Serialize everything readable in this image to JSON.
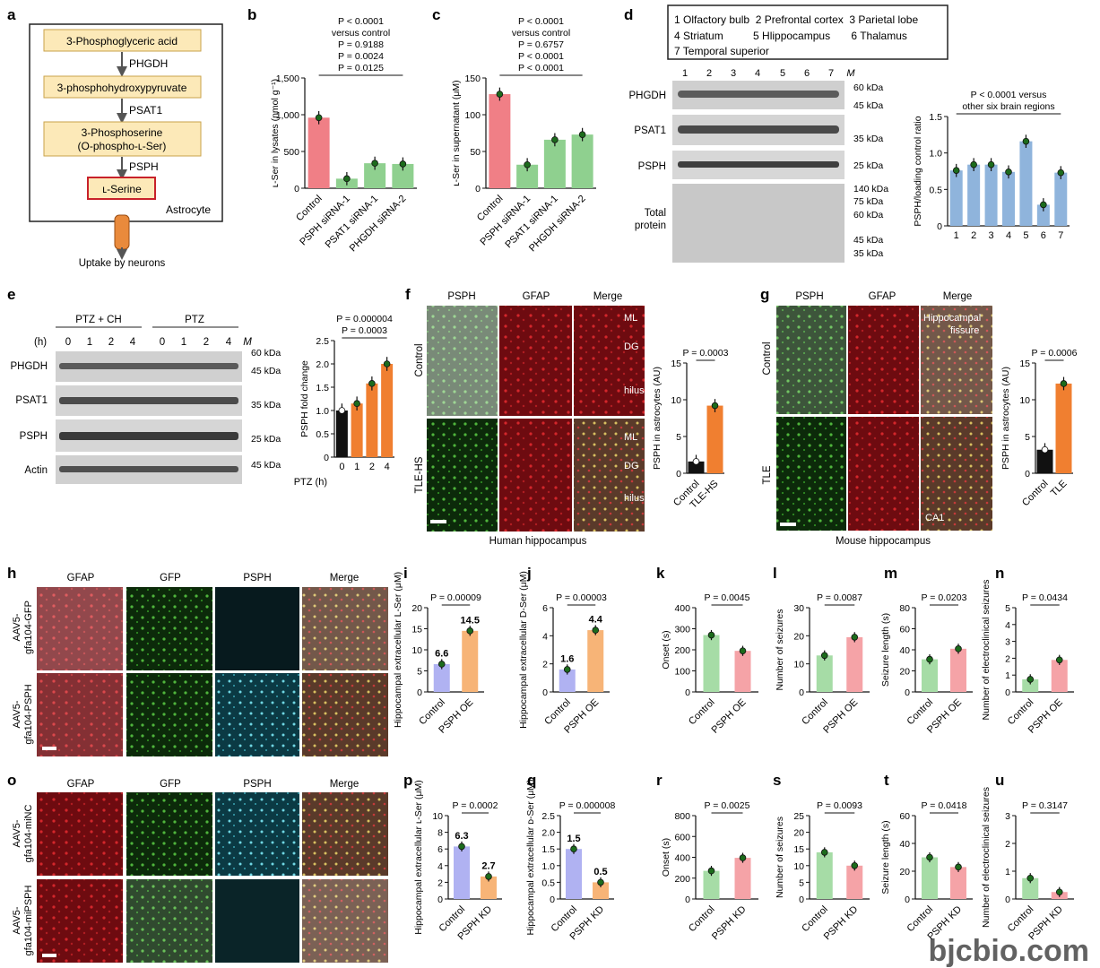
{
  "watermark": "bjcbio.com",
  "panel_a": {
    "letter": "a",
    "steps": [
      "3-Phosphoglyceric acid",
      "3-phosphohydroxypyruvate",
      "3-Phosphoserine",
      "(O-phospho-ʟ-Ser)",
      "ʟ-Serine"
    ],
    "enzymes": [
      "PHGDH",
      "PSAT1",
      "PSPH"
    ],
    "cell_label": "Astrocyte",
    "uptake": "Uptake by neurons"
  },
  "panel_d_legend": {
    "rows": [
      "1 Olfactory bulb  2 Prefrontal cortex  3 Parietal lobe",
      "4 Striatum          5 Hlippocampus       6 Thalamus",
      "7 Temporal superior"
    ]
  },
  "blots": {
    "d_lanes": [
      "1",
      "2",
      "3",
      "4",
      "5",
      "6",
      "7",
      "M"
    ],
    "d_rows": [
      "PHGDH",
      "PSAT1",
      "PSPH",
      "Total",
      "protein"
    ],
    "d_markers": [
      "60 kDa",
      "45 kDa",
      "35 kDa",
      "25 kDa",
      "140 kDa",
      "75 kDa",
      "60 kDa",
      "45 kDa",
      "35 kDa"
    ],
    "e_groups": [
      "PTZ + CH",
      "PTZ"
    ],
    "e_h": "(h)",
    "e_lanes": [
      "0",
      "1",
      "2",
      "4",
      "0",
      "1",
      "2",
      "4",
      "M"
    ],
    "e_rows": [
      "PHGDH",
      "PSAT1",
      "PSPH",
      "Actin"
    ],
    "e_markers": [
      "60 kDa",
      "45 kDa",
      "35 kDa",
      "25 kDa",
      "45 kDa"
    ]
  },
  "images": {
    "f": {
      "cols": [
        "PSPH",
        "GFAP",
        "Merge"
      ],
      "rows": [
        "Control",
        "TLE-HS"
      ],
      "marks": [
        "ML",
        "DG",
        "hilus",
        "ML",
        "DG",
        "hilus"
      ],
      "caption": "Human hippocampus"
    },
    "g": {
      "cols": [
        "PSPH",
        "GFAP",
        "Merge"
      ],
      "rows": [
        "Control",
        "TLE"
      ],
      "marks": [
        "Hippocampal",
        "fissure",
        "CA1"
      ],
      "caption": "Mouse hippocampus"
    },
    "h": {
      "cols": [
        "GFAP",
        "GFP",
        "PSPH",
        "Merge"
      ],
      "rows": [
        "AAV5-",
        "gfa104-GFP",
        "AAV5-",
        "gfa104-PSPH"
      ]
    },
    "o": {
      "cols": [
        "GFAP",
        "GFP",
        "PSPH",
        "Merge"
      ],
      "rows": [
        "AAV5-",
        "gfa104-miNC",
        "AAV5-",
        "gfa104-miPSPH"
      ]
    }
  },
  "chart_data": [
    {
      "panel": "b",
      "type": "bar",
      "ylabel": "ʟ-Ser in lysates (nmol g⁻¹)",
      "categories": [
        "Control",
        "PSPH siRNA-1",
        "PSAT1 siRNA-1",
        "PHGDH siRNA-2"
      ],
      "values": [
        960,
        130,
        340,
        330
      ],
      "colors": [
        "#f07f86",
        "#8fd08f",
        "#8fd08f",
        "#8fd08f"
      ],
      "ylim": [
        0,
        1500
      ],
      "yticks": [
        "0",
        "500",
        "1,000",
        "1,500"
      ],
      "pvalues": [
        "P < 0.0001",
        "versus control",
        "P = 0.9188",
        "P = 0.0024",
        "P = 0.0125"
      ]
    },
    {
      "panel": "c",
      "type": "bar",
      "ylabel": "ʟ-Ser in supernatant (μM)",
      "categories": [
        "Control",
        "PSPH siRNA-1",
        "PSAT1 siRNA-1",
        "PHGDH siRNA-2"
      ],
      "values": [
        128,
        32,
        66,
        73
      ],
      "colors": [
        "#f07f86",
        "#8fd08f",
        "#8fd08f",
        "#8fd08f"
      ],
      "ylim": [
        0,
        150
      ],
      "yticks": [
        "0",
        "50",
        "100",
        "150"
      ],
      "pvalues": [
        "P < 0.0001",
        "versus control",
        "P = 0.6757",
        "P < 0.0001",
        "P < 0.0001"
      ]
    },
    {
      "panel": "d",
      "type": "bar",
      "ylabel": "PSPH/loading control ratio",
      "categories": [
        "1",
        "2",
        "3",
        "4",
        "5",
        "6",
        "7"
      ],
      "values": [
        0.76,
        0.84,
        0.84,
        0.74,
        1.16,
        0.29,
        0.73
      ],
      "colors": [
        "#8fb4dc"
      ],
      "ylim": [
        0,
        1.5
      ],
      "yticks": [
        "0",
        "0.5",
        "1.0",
        "1.5"
      ],
      "pvalues": [
        "P < 0.0001 versus",
        "other six brain regions"
      ]
    },
    {
      "panel": "e",
      "type": "bar",
      "ylabel": "PSPH fold change",
      "xlabel": "PTZ (h)",
      "categories": [
        "0",
        "1",
        "2",
        "4"
      ],
      "values": [
        1.0,
        1.15,
        1.58,
        2.0
      ],
      "colors": [
        "#111111",
        "#f07f30",
        "#f07f30",
        "#f07f30"
      ],
      "ylim": [
        0,
        2.5
      ],
      "yticks": [
        "0",
        "0.5",
        "1.0",
        "1.5",
        "2.0",
        "2.5"
      ],
      "pvalues": [
        "P = 0.000004",
        "P = 0.0003"
      ]
    },
    {
      "panel": "f",
      "type": "bar",
      "ylabel": "PSPH in astrocytes (AU)",
      "categories": [
        "Control",
        "TLE-HS"
      ],
      "values": [
        1.6,
        9.2
      ],
      "colors": [
        "#111111",
        "#f07f30"
      ],
      "ylim": [
        0,
        15
      ],
      "yticks": [
        "0",
        "5",
        "10",
        "15"
      ],
      "pvalues": [
        "P = 0.0003"
      ]
    },
    {
      "panel": "g",
      "type": "bar",
      "ylabel": "PSPH in astrocytes (AU)",
      "categories": [
        "Control",
        "TLE"
      ],
      "values": [
        3.2,
        12.2
      ],
      "colors": [
        "#111111",
        "#f07f30"
      ],
      "ylim": [
        0,
        15
      ],
      "yticks": [
        "0",
        "5",
        "10",
        "15"
      ],
      "pvalues": [
        "P = 0.0006"
      ]
    },
    {
      "panel": "i",
      "type": "bar",
      "ylabel": "Hippocampal extracellular L-Ser (μM)",
      "categories": [
        "Control",
        "PSPH OE"
      ],
      "values": [
        6.6,
        14.5
      ],
      "labels": [
        "6.6",
        "14.5"
      ],
      "colors": [
        "#b0b2f2",
        "#f7b477"
      ],
      "ylim": [
        0,
        20
      ],
      "yticks": [
        "0",
        "5",
        "10",
        "15",
        "20"
      ],
      "pvalues": [
        "P = 0.00009"
      ]
    },
    {
      "panel": "j",
      "type": "bar",
      "ylabel": "Hippocampal extracellular D-Ser (μM)",
      "categories": [
        "Control",
        "PSPH OE"
      ],
      "values": [
        1.6,
        4.4
      ],
      "labels": [
        "1.6",
        "4.4"
      ],
      "colors": [
        "#b0b2f2",
        "#f7b477"
      ],
      "ylim": [
        0,
        6
      ],
      "yticks": [
        "0",
        "2",
        "4",
        "6"
      ],
      "pvalues": [
        "P = 0.00003"
      ]
    },
    {
      "panel": "k",
      "type": "bar",
      "ylabel": "Onset (s)",
      "categories": [
        "Control",
        "PSPH OE"
      ],
      "values": [
        270,
        195
      ],
      "colors": [
        "#a6dca6",
        "#f5a3a7"
      ],
      "ylim": [
        0,
        400
      ],
      "yticks": [
        "0",
        "100",
        "200",
        "300",
        "400"
      ],
      "pvalues": [
        "P = 0.0045"
      ]
    },
    {
      "panel": "l",
      "type": "bar",
      "ylabel": "Number of seizures",
      "categories": [
        "Control",
        "PSPH OE"
      ],
      "values": [
        13,
        19.5
      ],
      "colors": [
        "#a6dca6",
        "#f5a3a7"
      ],
      "ylim": [
        0,
        30
      ],
      "yticks": [
        "0",
        "10",
        "20",
        "30"
      ],
      "pvalues": [
        "P = 0.0087"
      ]
    },
    {
      "panel": "m",
      "type": "bar",
      "ylabel": "Seizure length (s)",
      "categories": [
        "Control",
        "PSPH OE"
      ],
      "values": [
        31,
        41
      ],
      "colors": [
        "#a6dca6",
        "#f5a3a7"
      ],
      "ylim": [
        0,
        80
      ],
      "yticks": [
        "0",
        "20",
        "40",
        "60",
        "80"
      ],
      "pvalues": [
        "P = 0.0203"
      ]
    },
    {
      "panel": "n",
      "type": "bar",
      "ylabel": "Number of electroclinical seizures",
      "categories": [
        "Control",
        "PSPH OE"
      ],
      "values": [
        0.75,
        1.9
      ],
      "colors": [
        "#a6dca6",
        "#f5a3a7"
      ],
      "ylim": [
        0,
        5
      ],
      "yticks": [
        "0",
        "1",
        "2",
        "3",
        "4",
        "5"
      ],
      "pvalues": [
        "P = 0.0434"
      ]
    },
    {
      "panel": "p",
      "type": "bar",
      "ylabel": "Hippocampal extracellular ʟ-Ser (μM)",
      "categories": [
        "Control",
        "PSPH KD"
      ],
      "values": [
        6.3,
        2.7
      ],
      "labels": [
        "6.3",
        "2.7"
      ],
      "colors": [
        "#b0b2f2",
        "#f7b477"
      ],
      "ylim": [
        0,
        10
      ],
      "yticks": [
        "0",
        "2",
        "4",
        "6",
        "8",
        "10"
      ],
      "pvalues": [
        "P = 0.0002"
      ]
    },
    {
      "panel": "q",
      "type": "bar",
      "ylabel": "Hippocampal extracellular ᴅ-Ser (μM)",
      "categories": [
        "Control",
        "PSPH KD"
      ],
      "values": [
        1.5,
        0.5
      ],
      "labels": [
        "1.5",
        "0.5"
      ],
      "colors": [
        "#b0b2f2",
        "#f7b477"
      ],
      "ylim": [
        0,
        2.5
      ],
      "yticks": [
        "0",
        "0.5",
        "1.0",
        "1.5",
        "2.0",
        "2.5"
      ],
      "pvalues": [
        "P = 0.000008"
      ]
    },
    {
      "panel": "r",
      "type": "bar",
      "ylabel": "Onset (s)",
      "categories": [
        "Control",
        "PSPH KD"
      ],
      "values": [
        270,
        395
      ],
      "colors": [
        "#a6dca6",
        "#f5a3a7"
      ],
      "ylim": [
        0,
        800
      ],
      "yticks": [
        "0",
        "200",
        "400",
        "600",
        "800"
      ],
      "pvalues": [
        "P = 0.0025"
      ]
    },
    {
      "panel": "s",
      "type": "bar",
      "ylabel": "Number of seizures",
      "categories": [
        "Control",
        "PSPH KD"
      ],
      "values": [
        14,
        10
      ],
      "colors": [
        "#a6dca6",
        "#f5a3a7"
      ],
      "ylim": [
        0,
        25
      ],
      "yticks": [
        "0",
        "5",
        "10",
        "15",
        "20",
        "25"
      ],
      "pvalues": [
        "P = 0.0093"
      ]
    },
    {
      "panel": "t",
      "type": "bar",
      "ylabel": "Seizure length (s)",
      "categories": [
        "Control",
        "PSPH KD"
      ],
      "values": [
        30,
        23
      ],
      "colors": [
        "#a6dca6",
        "#f5a3a7"
      ],
      "ylim": [
        0,
        60
      ],
      "yticks": [
        "0",
        "20",
        "40",
        "60"
      ],
      "pvalues": [
        "P = 0.0418"
      ]
    },
    {
      "panel": "u",
      "type": "bar",
      "ylabel": "Number of electroclinical seizures",
      "categories": [
        "Control",
        "PSPH KD"
      ],
      "values": [
        0.75,
        0.25
      ],
      "colors": [
        "#a6dca6",
        "#f5a3a7"
      ],
      "ylim": [
        0,
        3
      ],
      "yticks": [
        "0",
        "1",
        "2",
        "3"
      ],
      "pvalues": [
        "P = 0.3147"
      ]
    }
  ]
}
